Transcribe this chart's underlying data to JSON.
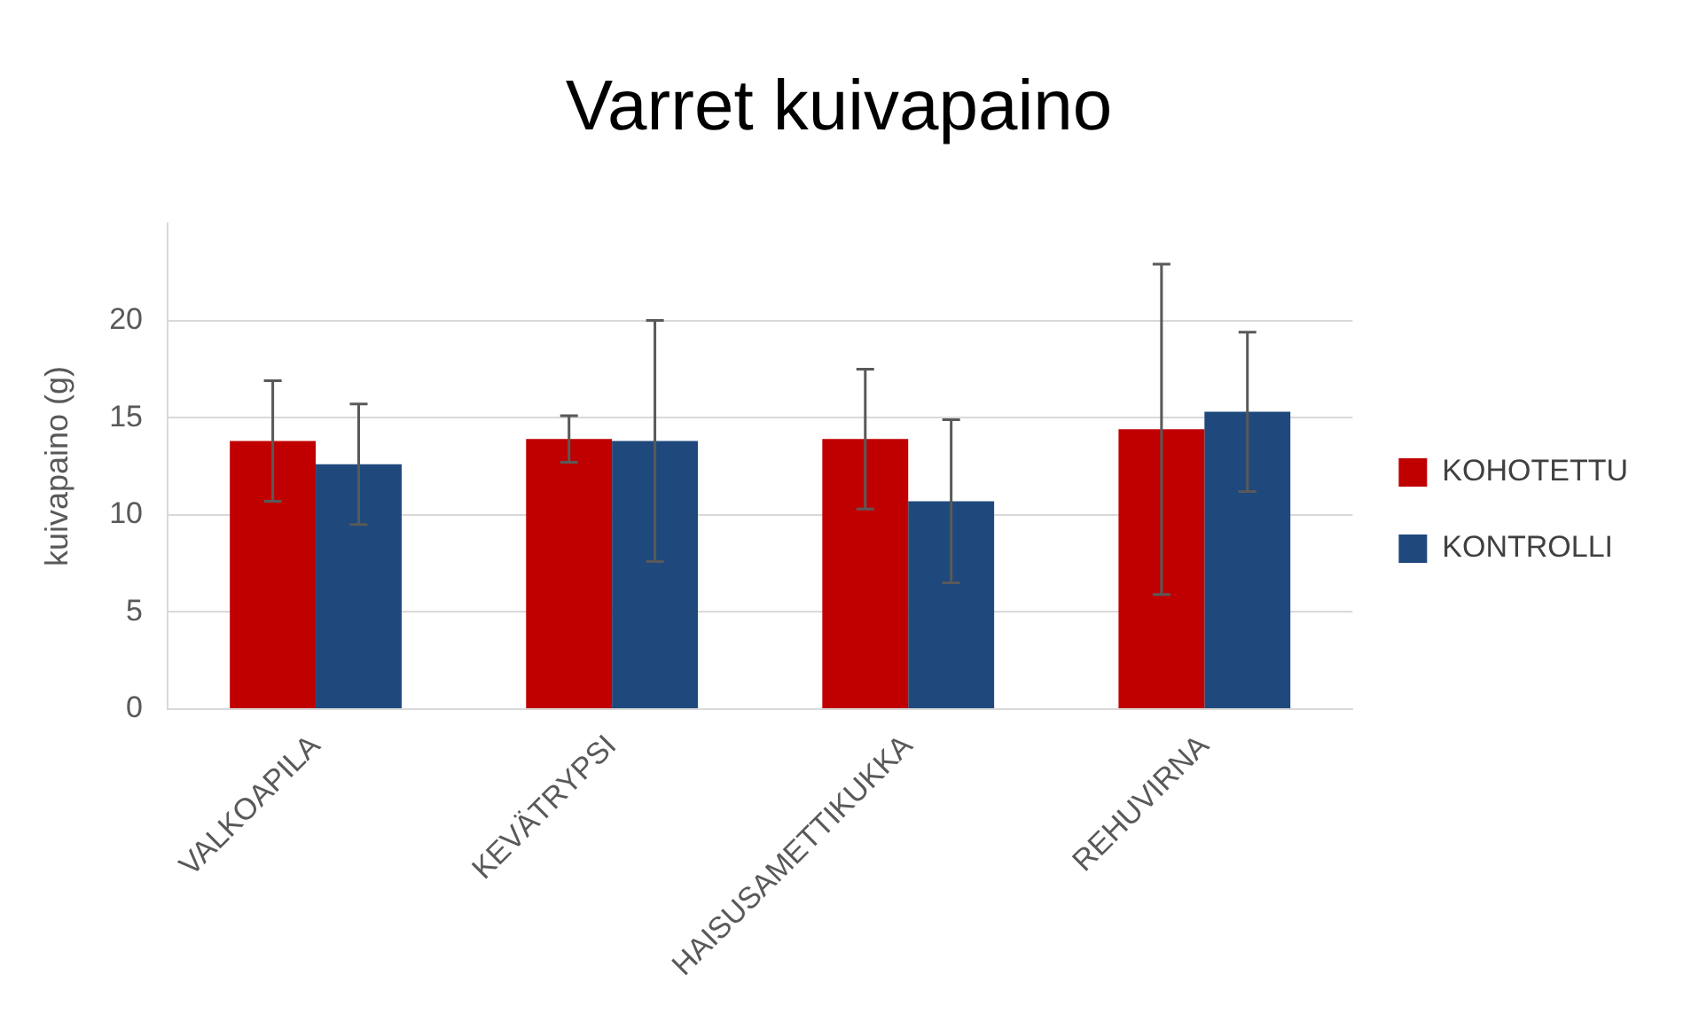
{
  "chart_data": {
    "type": "bar",
    "title": "Varret kuivapaino",
    "ylabel": "kuivapaino (g)",
    "categories": [
      "VALKOAPILA",
      "KEVÄTRYPSI",
      "HAISUSAMETTIKUKKA",
      "REHUVIRNA"
    ],
    "series": [
      {
        "name": "KOHOTETTU",
        "color": "#c00000",
        "values": [
          13.8,
          13.9,
          13.9,
          14.4
        ],
        "errors": [
          3.1,
          1.2,
          3.6,
          8.5
        ]
      },
      {
        "name": "KONTROLLI",
        "color": "#1f497d",
        "values": [
          12.6,
          13.8,
          10.7,
          15.3
        ],
        "errors": [
          3.1,
          6.2,
          4.2,
          4.1
        ]
      }
    ],
    "ylim": [
      0,
      25
    ],
    "yticks": [
      0,
      5,
      10,
      15,
      20
    ],
    "grid": "y",
    "legend": "right"
  }
}
